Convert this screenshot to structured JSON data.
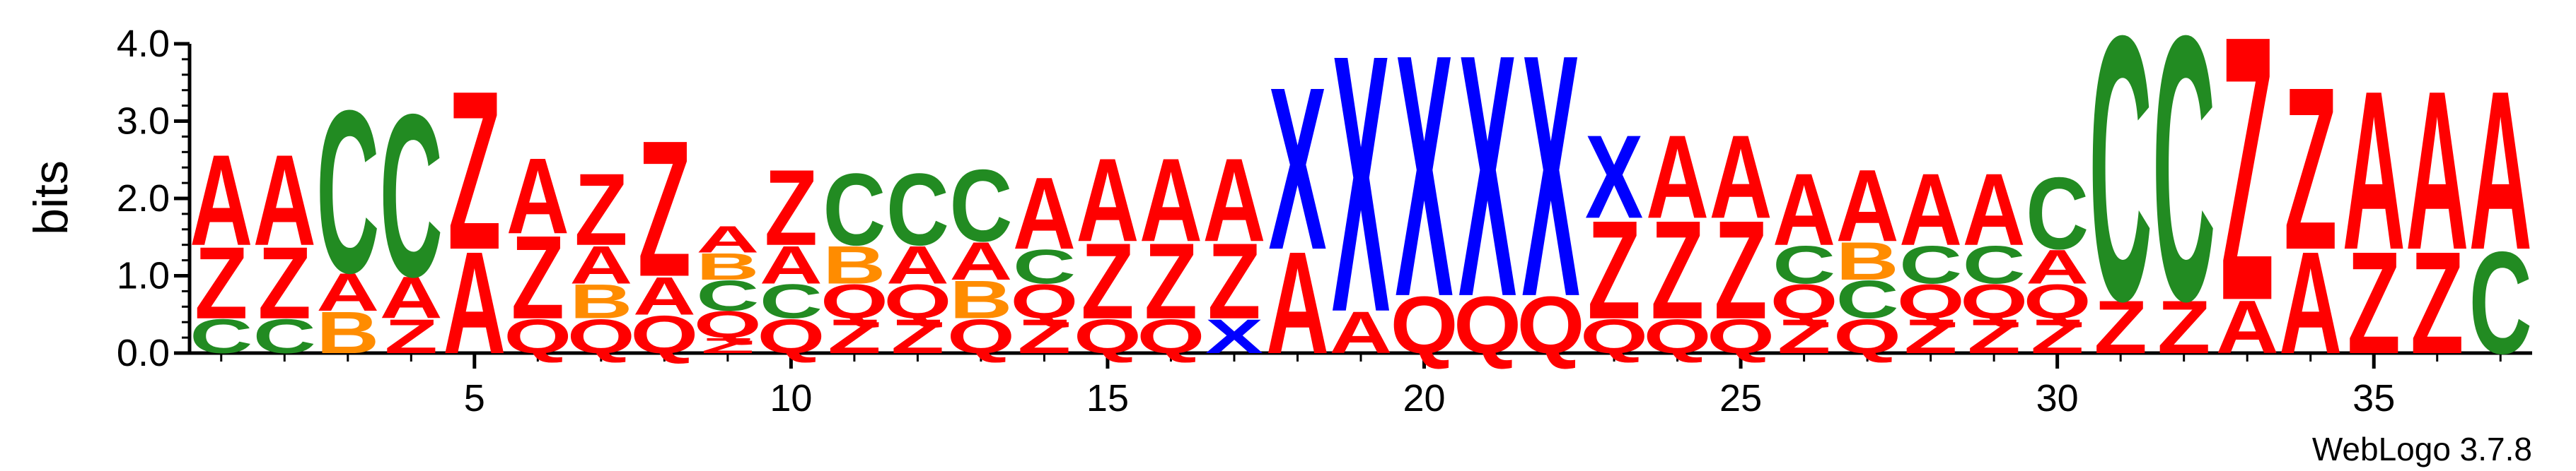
{
  "chart_data": {
    "type": "sequence-logo",
    "ylabel": "bits",
    "ylim": [
      0,
      4.0
    ],
    "y_ticks": [
      "0.0",
      "1.0",
      "2.0",
      "3.0",
      "4.0"
    ],
    "y_tick_values": [
      0,
      1,
      2,
      3,
      4
    ],
    "x_ticks": [
      "5",
      "10",
      "15",
      "20",
      "25",
      "30",
      "35"
    ],
    "x_tick_values": [
      5,
      10,
      15,
      20,
      25,
      30,
      35
    ],
    "positions": 37,
    "colors": {
      "A": "#ff0000",
      "Z": "#ff0000",
      "Q": "#ff0000",
      "C": "#228b22",
      "B": "#ff8c00",
      "X": "#0000ff"
    },
    "stacks": [
      {
        "position": 1,
        "letters": [
          [
            "C",
            0.45
          ],
          [
            "Z",
            0.95
          ],
          [
            "A",
            1.2
          ]
        ]
      },
      {
        "position": 2,
        "letters": [
          [
            "C",
            0.45
          ],
          [
            "Z",
            0.95
          ],
          [
            "A",
            1.2
          ]
        ]
      },
      {
        "position": 3,
        "letters": [
          [
            "B",
            0.55
          ],
          [
            "A",
            0.5
          ],
          [
            "C",
            2.15
          ]
        ]
      },
      {
        "position": 4,
        "letters": [
          [
            "Z",
            0.45
          ],
          [
            "A",
            0.55
          ],
          [
            "C",
            2.15
          ]
        ]
      },
      {
        "position": 5,
        "letters": [
          [
            "A",
            1.35
          ],
          [
            "Z",
            2.1
          ]
        ]
      },
      {
        "position": 6,
        "letters": [
          [
            "Q",
            0.45
          ],
          [
            "Z",
            1.1
          ],
          [
            "A",
            1.0
          ]
        ]
      },
      {
        "position": 7,
        "letters": [
          [
            "Q",
            0.45
          ],
          [
            "B",
            0.45
          ],
          [
            "A",
            0.5
          ],
          [
            "Z",
            0.95
          ]
        ]
      },
      {
        "position": 8,
        "letters": [
          [
            "Q",
            0.5
          ],
          [
            "A",
            0.5
          ],
          [
            "Z",
            1.8
          ]
        ]
      },
      {
        "position": 9,
        "letters": [
          [
            "Z",
            0.2
          ],
          [
            "Q",
            0.35
          ],
          [
            "C",
            0.4
          ],
          [
            "B",
            0.35
          ],
          [
            "A",
            0.35
          ]
        ]
      },
      {
        "position": 10,
        "letters": [
          [
            "Q",
            0.45
          ],
          [
            "C",
            0.45
          ],
          [
            "A",
            0.5
          ],
          [
            "Z",
            1.0
          ]
        ]
      },
      {
        "position": 11,
        "letters": [
          [
            "Z",
            0.45
          ],
          [
            "Q",
            0.45
          ],
          [
            "B",
            0.5
          ],
          [
            "C",
            0.95
          ]
        ]
      },
      {
        "position": 12,
        "letters": [
          [
            "Z",
            0.45
          ],
          [
            "Q",
            0.45
          ],
          [
            "A",
            0.5
          ],
          [
            "C",
            0.95
          ]
        ]
      },
      {
        "position": 13,
        "letters": [
          [
            "Q",
            0.45
          ],
          [
            "B",
            0.5
          ],
          [
            "A",
            0.5
          ],
          [
            "C",
            0.95
          ]
        ]
      },
      {
        "position": 14,
        "letters": [
          [
            "Z",
            0.45
          ],
          [
            "Q",
            0.45
          ],
          [
            "C",
            0.45
          ],
          [
            "A",
            0.95
          ]
        ]
      },
      {
        "position": 15,
        "letters": [
          [
            "Q",
            0.45
          ],
          [
            "Z",
            1.0
          ],
          [
            "A",
            1.1
          ]
        ]
      },
      {
        "position": 16,
        "letters": [
          [
            "Q",
            0.45
          ],
          [
            "Z",
            1.0
          ],
          [
            "A",
            1.1
          ]
        ]
      },
      {
        "position": 17,
        "letters": [
          [
            "X",
            0.45
          ],
          [
            "Z",
            1.0
          ],
          [
            "A",
            1.1
          ]
        ]
      },
      {
        "position": 18,
        "letters": [
          [
            "A",
            1.35
          ],
          [
            "X",
            2.15
          ]
        ]
      },
      {
        "position": 19,
        "letters": [
          [
            "A",
            0.55
          ],
          [
            "X",
            3.4
          ]
        ]
      },
      {
        "position": 20,
        "letters": [
          [
            "Q",
            0.75
          ],
          [
            "X",
            3.2
          ]
        ]
      },
      {
        "position": 21,
        "letters": [
          [
            "Q",
            0.75
          ],
          [
            "X",
            3.2
          ]
        ]
      },
      {
        "position": 22,
        "letters": [
          [
            "Q",
            0.75
          ],
          [
            "X",
            3.2
          ]
        ]
      },
      {
        "position": 23,
        "letters": [
          [
            "Q",
            0.45
          ],
          [
            "Z",
            1.3
          ],
          [
            "X",
            1.1
          ]
        ]
      },
      {
        "position": 24,
        "letters": [
          [
            "Q",
            0.45
          ],
          [
            "Z",
            1.3
          ],
          [
            "A",
            1.1
          ]
        ]
      },
      {
        "position": 25,
        "letters": [
          [
            "Q",
            0.45
          ],
          [
            "Z",
            1.3
          ],
          [
            "A",
            1.1
          ]
        ]
      },
      {
        "position": 26,
        "letters": [
          [
            "Z",
            0.45
          ],
          [
            "Q",
            0.45
          ],
          [
            "C",
            0.5
          ],
          [
            "A",
            0.95
          ]
        ]
      },
      {
        "position": 27,
        "letters": [
          [
            "Q",
            0.45
          ],
          [
            "C",
            0.5
          ],
          [
            "B",
            0.5
          ],
          [
            "A",
            0.95
          ]
        ]
      },
      {
        "position": 28,
        "letters": [
          [
            "Z",
            0.45
          ],
          [
            "Q",
            0.45
          ],
          [
            "C",
            0.5
          ],
          [
            "A",
            0.95
          ]
        ]
      },
      {
        "position": 29,
        "letters": [
          [
            "Z",
            0.45
          ],
          [
            "Q",
            0.45
          ],
          [
            "C",
            0.5
          ],
          [
            "A",
            0.95
          ]
        ]
      },
      {
        "position": 30,
        "letters": [
          [
            "Z",
            0.45
          ],
          [
            "Q",
            0.45
          ],
          [
            "A",
            0.45
          ],
          [
            "C",
            0.95
          ]
        ]
      },
      {
        "position": 31,
        "letters": [
          [
            "Z",
            0.7
          ],
          [
            "C",
            3.5
          ]
        ]
      },
      {
        "position": 32,
        "letters": [
          [
            "Z",
            0.7
          ],
          [
            "C",
            3.5
          ]
        ]
      },
      {
        "position": 33,
        "letters": [
          [
            "A",
            0.7
          ],
          [
            "Z",
            3.5
          ]
        ]
      },
      {
        "position": 34,
        "letters": [
          [
            "A",
            1.35
          ],
          [
            "Z",
            2.15
          ]
        ]
      },
      {
        "position": 35,
        "letters": [
          [
            "Z",
            1.35
          ],
          [
            "A",
            2.1
          ]
        ]
      },
      {
        "position": 36,
        "letters": [
          [
            "Z",
            1.35
          ],
          [
            "A",
            2.1
          ]
        ]
      },
      {
        "position": 37,
        "letters": [
          [
            "C",
            1.35
          ],
          [
            "A",
            2.1
          ]
        ]
      }
    ]
  },
  "footer": {
    "credit": "WebLogo 3.7.8"
  }
}
